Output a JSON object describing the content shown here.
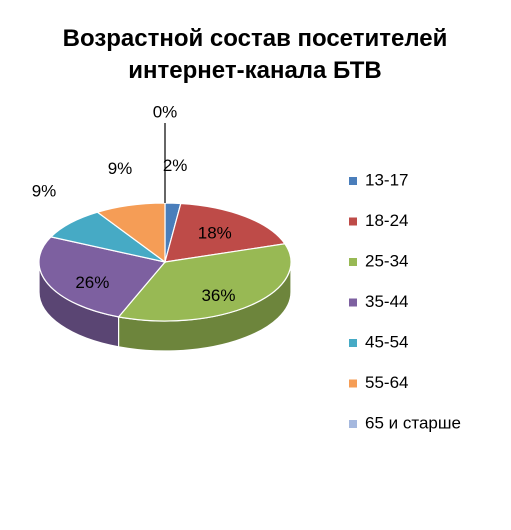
{
  "chart_data": {
    "type": "pie",
    "title_lines": [
      "Возрастной состав посетителей",
      "интернет-канала БТВ"
    ],
    "categories": [
      "13-17",
      "18-24",
      "25-34",
      "35-44",
      "45-54",
      "55-64",
      "65 и старше"
    ],
    "values": [
      2,
      18,
      36,
      26,
      9,
      9,
      0
    ],
    "data_labels": [
      "2%",
      "18%",
      "36%",
      "26%",
      "9%",
      "9%",
      "0%"
    ],
    "colors": [
      "#4a7ebb",
      "#be4b48",
      "#98b954",
      "#7d60a0",
      "#46aac5",
      "#f59d56",
      "#a5b8de"
    ],
    "style": "3d-pie",
    "legend_position": "right"
  }
}
